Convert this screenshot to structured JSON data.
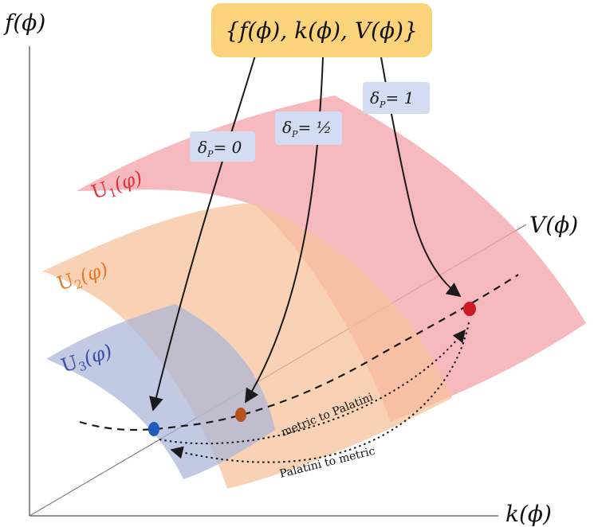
{
  "axes": {
    "vertical_label": "f(ϕ)",
    "horizontal_label": "k(ϕ)",
    "diagonal_label": "V(ϕ)"
  },
  "function_set_label": "{f(ϕ), k(ϕ), V(ϕ)}",
  "surfaces": [
    {
      "label_main": "U",
      "label_sub": "1",
      "label_arg": "(φ)",
      "color": "#e8313f",
      "fill": "#f4a5aa"
    },
    {
      "label_main": "U",
      "label_sub": "2",
      "label_arg": "(φ)",
      "color": "#e07a2a",
      "fill": "#f6c199"
    },
    {
      "label_main": "U",
      "label_sub": "3",
      "label_arg": "(φ)",
      "color": "#3a4fa8",
      "fill": "#a9b4d8"
    }
  ],
  "delta_labels": {
    "d0": {
      "base": "δ",
      "sub": "P",
      "value": "= 0"
    },
    "dhalf": {
      "base": "δ",
      "sub": "P",
      "value": "= ½"
    },
    "d1": {
      "base": "δ",
      "sub": "P",
      "value": "= 1"
    }
  },
  "curve_labels": {
    "metric_to_palatini": "metric to Palatini",
    "palatini_to_metric": "Palatini to metric"
  },
  "colors": {
    "box_fill": "#fbd37a",
    "delta_box_fill": "#d4dcf3",
    "point_blue": "#1e5bbf",
    "point_orange": "#b5541a",
    "point_red": "#cc1a22",
    "axis": "#555555"
  }
}
